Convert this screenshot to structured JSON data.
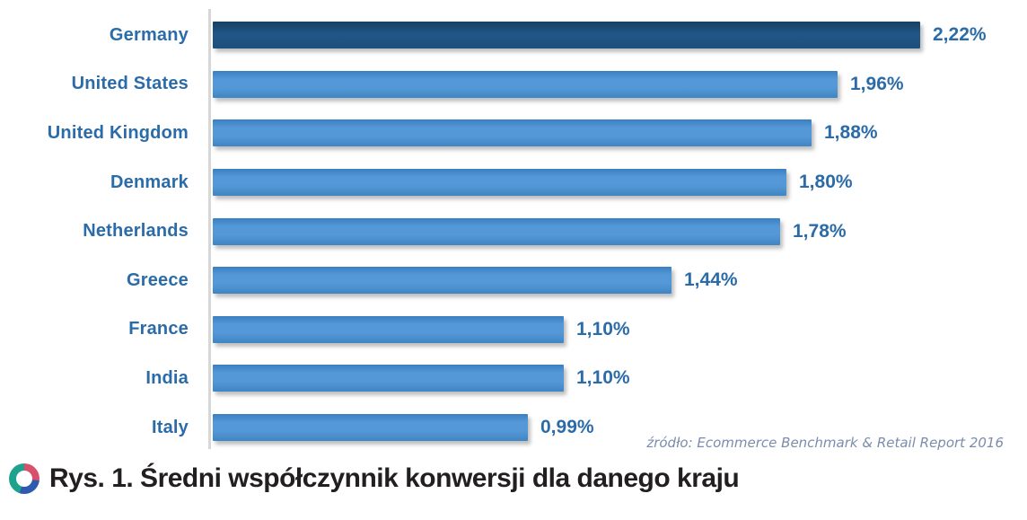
{
  "chart_data": {
    "type": "bar",
    "orientation": "horizontal",
    "categories": [
      "Germany",
      "United States",
      "United Kingdom",
      "Denmark",
      "Netherlands",
      "Greece",
      "France",
      "India",
      "Italy"
    ],
    "values": [
      2.22,
      1.96,
      1.88,
      1.8,
      1.78,
      1.44,
      1.1,
      1.1,
      0.99
    ],
    "value_labels": [
      "2,22%",
      "1,96%",
      "1,88%",
      "1,80%",
      "1,78%",
      "1,44%",
      "1,10%",
      "1,10%",
      "0,99%"
    ],
    "title": "",
    "xlabel": "",
    "ylabel": "",
    "xlim": [
      0,
      2.4
    ],
    "grid": false,
    "legend": false,
    "highlight_index": 0,
    "bar_color_default": "#5598d8",
    "bar_color_highlight": "#1d5480",
    "label_color": "#2b6ca8",
    "source_note": "źródło: Ecommerce Benchmark & Retail Report 2016"
  },
  "caption": {
    "text": "Rys. 1. Średni współczynnik konwersji dla danego kraju",
    "icon": "donut-chart-icon",
    "icon_colors": [
      "#1fa28c",
      "#d8506b",
      "#2e5bb0"
    ],
    "text_color": "#231f20"
  }
}
